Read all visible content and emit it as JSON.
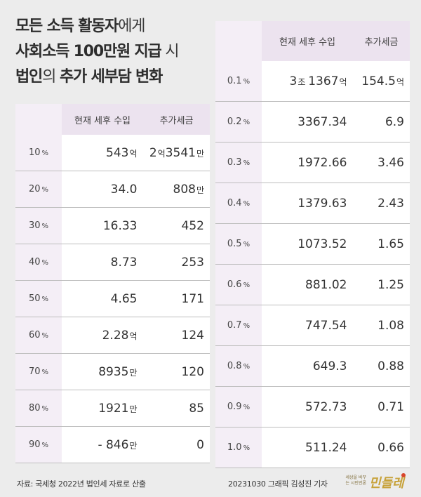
{
  "title": {
    "line1": [
      {
        "text": "모든 소득 활동자",
        "bold": true
      },
      {
        "text": "에게",
        "bold": false
      }
    ],
    "line2": [
      {
        "text": "사회소득 100만원 지급",
        "bold": true
      },
      {
        "text": " 시",
        "bold": false
      }
    ],
    "line3": [
      {
        "text": "법인",
        "bold": true
      },
      {
        "text": "의 ",
        "bold": false
      },
      {
        "text": "추가 세부담 변화",
        "bold": true
      }
    ]
  },
  "colors": {
    "header_bg": "#ece3ef",
    "pct_bg": "#f4eef6",
    "page_bg": "#ececec"
  },
  "headers": {
    "current": "현재 세후 수입",
    "extra": "추가세금"
  },
  "left_table": [
    {
      "p": "10",
      "pu": "%",
      "a": [
        {
          "t": "543"
        },
        {
          "t": "억",
          "u": 1
        }
      ],
      "b": [
        {
          "t": "2"
        },
        {
          "t": "억",
          "u": 1
        },
        {
          "t": "3541"
        },
        {
          "t": "만",
          "u": 1
        }
      ]
    },
    {
      "p": "20",
      "pu": "%",
      "a": [
        {
          "t": "34.0"
        }
      ],
      "b": [
        {
          "t": "808"
        },
        {
          "t": "만",
          "u": 1
        }
      ]
    },
    {
      "p": "30",
      "pu": "%",
      "a": [
        {
          "t": "16.33"
        }
      ],
      "b": [
        {
          "t": "452"
        }
      ]
    },
    {
      "p": "40",
      "pu": "%",
      "a": [
        {
          "t": "8.73"
        }
      ],
      "b": [
        {
          "t": "253"
        }
      ]
    },
    {
      "p": "50",
      "pu": "%",
      "a": [
        {
          "t": "4.65"
        }
      ],
      "b": [
        {
          "t": "171"
        }
      ]
    },
    {
      "p": "60",
      "pu": "%",
      "a": [
        {
          "t": "2.28"
        },
        {
          "t": "억",
          "u": 1
        }
      ],
      "b": [
        {
          "t": "124"
        }
      ]
    },
    {
      "p": "70",
      "pu": "%",
      "a": [
        {
          "t": "8935"
        },
        {
          "t": "만",
          "u": 1
        }
      ],
      "b": [
        {
          "t": "120"
        }
      ]
    },
    {
      "p": "80",
      "pu": "%",
      "a": [
        {
          "t": "1921"
        },
        {
          "t": "만",
          "u": 1
        }
      ],
      "b": [
        {
          "t": "85"
        }
      ]
    },
    {
      "p": "90",
      "pu": "%",
      "a": [
        {
          "t": "- 846"
        },
        {
          "t": "만",
          "u": 1
        }
      ],
      "b": [
        {
          "t": "0"
        }
      ]
    }
  ],
  "right_table": [
    {
      "p": "0.1",
      "pu": "%",
      "a": [
        {
          "t": "3"
        },
        {
          "t": "조 ",
          "u": 1
        },
        {
          "t": "1367"
        },
        {
          "t": "억",
          "u": 1
        }
      ],
      "b": [
        {
          "t": "154.5"
        },
        {
          "t": "억",
          "u": 1
        }
      ]
    },
    {
      "p": "0.2",
      "pu": "%",
      "a": [
        {
          "t": "3367.34"
        }
      ],
      "b": [
        {
          "t": "6.9"
        }
      ]
    },
    {
      "p": "0.3",
      "pu": "%",
      "a": [
        {
          "t": "1972.66"
        }
      ],
      "b": [
        {
          "t": "3.46"
        }
      ]
    },
    {
      "p": "0.4",
      "pu": "%",
      "a": [
        {
          "t": "1379.63"
        }
      ],
      "b": [
        {
          "t": "2.43"
        }
      ]
    },
    {
      "p": "0.5",
      "pu": "%",
      "a": [
        {
          "t": "1073.52"
        }
      ],
      "b": [
        {
          "t": "1.65"
        }
      ]
    },
    {
      "p": "0.6",
      "pu": "%",
      "a": [
        {
          "t": "881.02"
        }
      ],
      "b": [
        {
          "t": "1.25"
        }
      ]
    },
    {
      "p": "0.7",
      "pu": "%",
      "a": [
        {
          "t": "747.54"
        }
      ],
      "b": [
        {
          "t": "1.08"
        }
      ]
    },
    {
      "p": "0.8",
      "pu": "%",
      "a": [
        {
          "t": "649.3"
        }
      ],
      "b": [
        {
          "t": "0.88"
        }
      ]
    },
    {
      "p": "0.9",
      "pu": "%",
      "a": [
        {
          "t": "572.73"
        }
      ],
      "b": [
        {
          "t": "0.71"
        }
      ]
    },
    {
      "p": "1.0",
      "pu": "%",
      "a": [
        {
          "t": "511.24"
        }
      ],
      "b": [
        {
          "t": "0.66"
        }
      ]
    }
  ],
  "footer": {
    "source": "자료: 국세청 2022년 법인세 자료로 산출",
    "credit": "20231030 그래픽 김성진 기자",
    "brand_small": "세상을 바꾸는 시민언론",
    "brand_logo": "민들레"
  }
}
